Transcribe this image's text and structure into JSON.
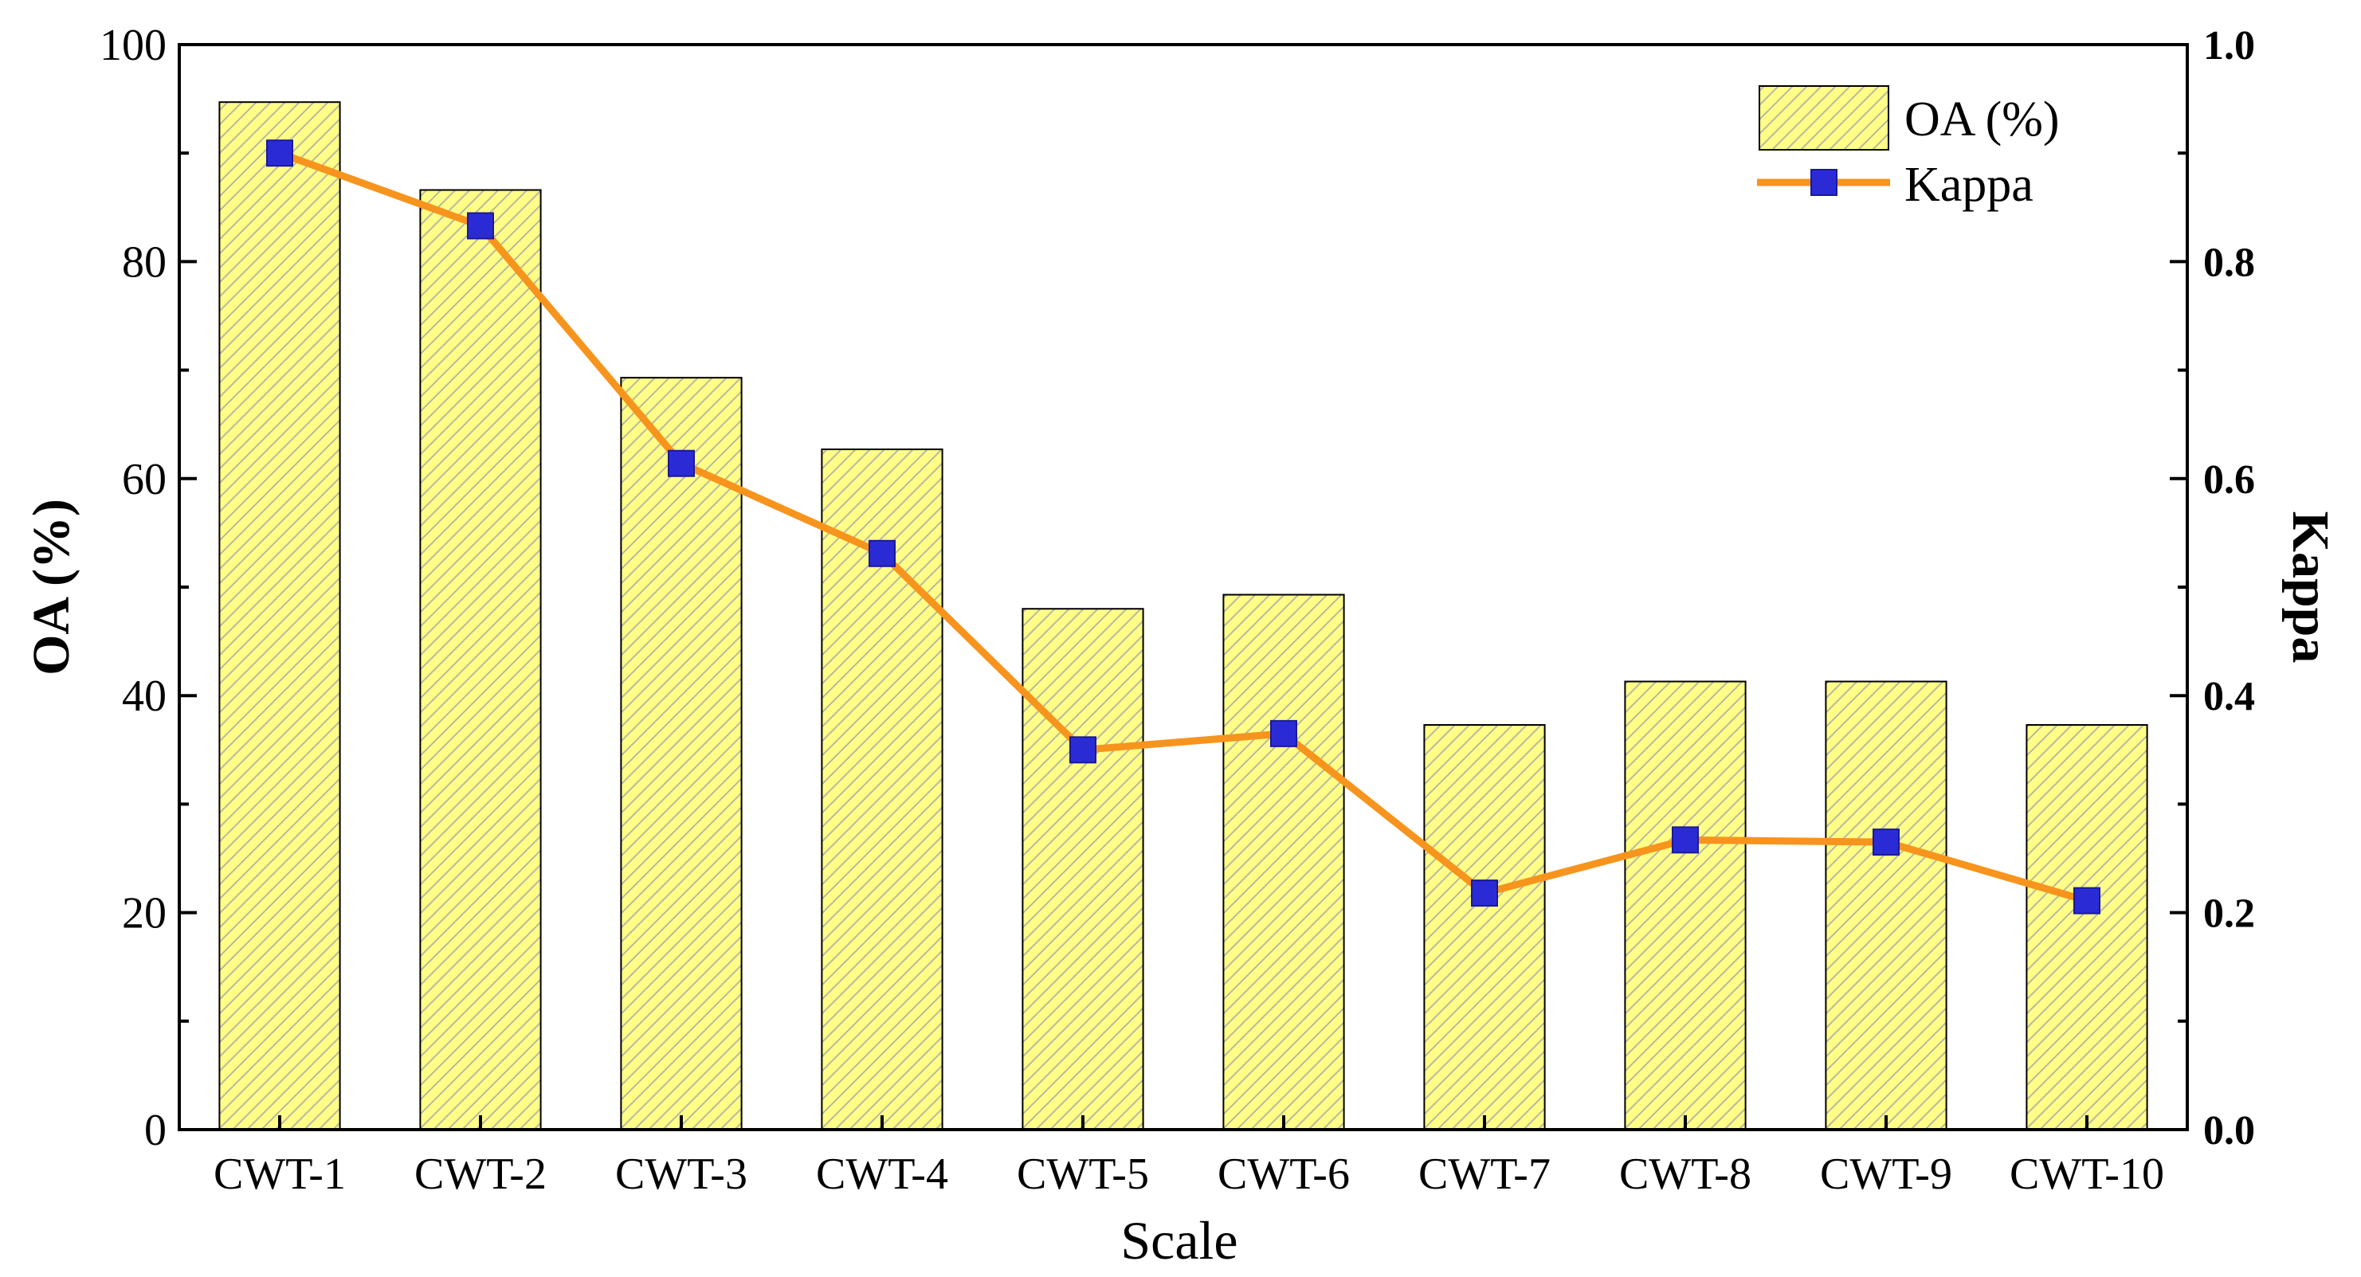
{
  "chart_data": {
    "type": "bar",
    "xlabel": "Scale",
    "ylabel": "OA (%)",
    "y2label": "Kappa",
    "categories": [
      "CWT-1",
      "CWT-2",
      "CWT-3",
      "CWT-4",
      "CWT-5",
      "CWT-6",
      "CWT-7",
      "CWT-8",
      "CWT-9",
      "CWT-10"
    ],
    "ylim": [
      0,
      100
    ],
    "y2lim": [
      0,
      1.0
    ],
    "yticks": [
      "0",
      "20",
      "40",
      "60",
      "80",
      "100"
    ],
    "y2ticks": [
      "0.0",
      "0.2",
      "0.4",
      "0.6",
      "0.8",
      "1.0"
    ],
    "grid": false,
    "legend_position": "top-right",
    "series": [
      {
        "name": "OA (%)",
        "kind": "bar",
        "axis": "left",
        "values": [
          94.7,
          86.6,
          69.3,
          62.7,
          48.0,
          49.3,
          37.3,
          41.3,
          41.3,
          37.3
        ],
        "fill_color": "#ffff88",
        "hatch_color": "#b3b3b3",
        "edge_color": "#000000"
      },
      {
        "name": "Kappa",
        "kind": "line",
        "axis": "right",
        "values": [
          0.9,
          0.833,
          0.614,
          0.531,
          0.35,
          0.365,
          0.218,
          0.267,
          0.265,
          0.211
        ],
        "line_color": "#f7941d",
        "marker_color": "#2b2bd6",
        "marker": "square"
      }
    ]
  }
}
